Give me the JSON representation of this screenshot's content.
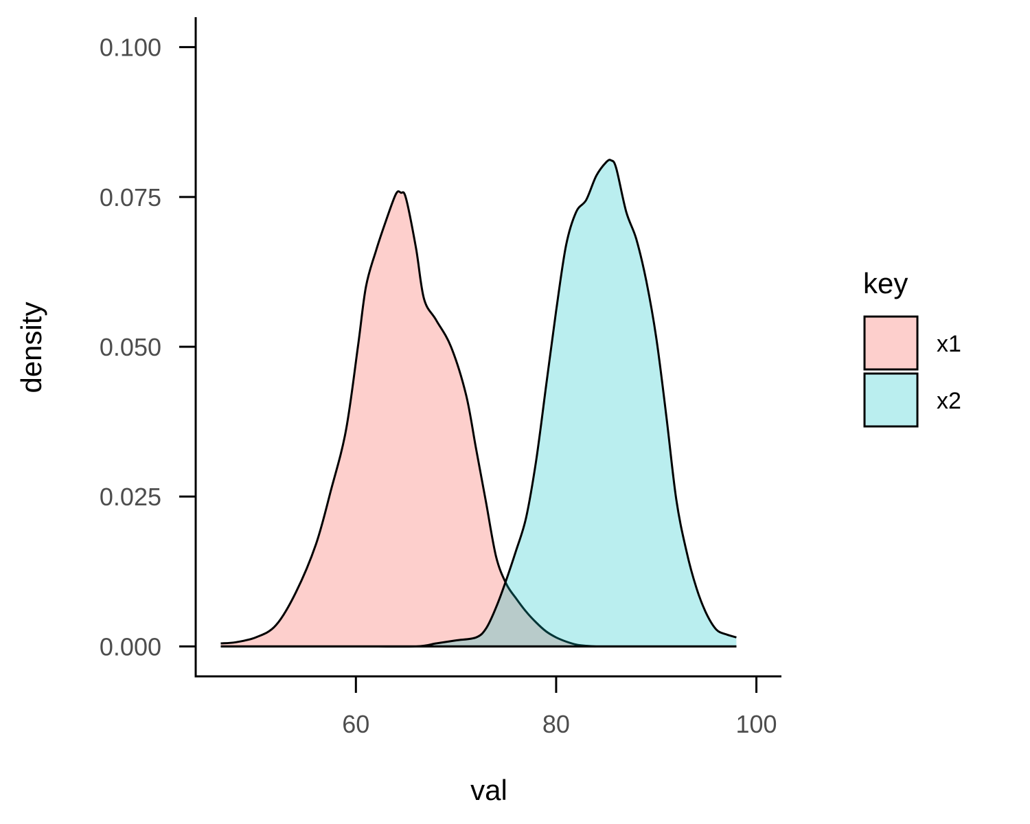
{
  "chart_data": {
    "type": "area",
    "subtype": "density",
    "title": "",
    "xlabel": "val",
    "ylabel": "density",
    "xlim": [
      44,
      102.5
    ],
    "ylim": [
      -0.005,
      0.105
    ],
    "x_ticks": [
      60,
      80,
      100
    ],
    "x_tick_labels": [
      "60",
      "80",
      "100"
    ],
    "y_ticks": [
      0.0,
      0.025,
      0.05,
      0.075,
      0.1
    ],
    "y_tick_labels": [
      "0.000",
      "0.025",
      "0.050",
      "0.075",
      "0.100"
    ],
    "grid": false,
    "legend": {
      "title": "key",
      "position": "right"
    },
    "series": [
      {
        "name": "x1",
        "color": "#F8766D",
        "fill_opacity": 0.35,
        "x": [
          46.5,
          48,
          50,
          52,
          54,
          56,
          57.5,
          59,
          60.2,
          61,
          62,
          63,
          64,
          64.5,
          65,
          66,
          66.8,
          68,
          69.5,
          71,
          72,
          73,
          74,
          75,
          76,
          77,
          78,
          79,
          80,
          81,
          82,
          83,
          84,
          85,
          98
        ],
        "y": [
          0.0005,
          0.0007,
          0.0015,
          0.0035,
          0.009,
          0.017,
          0.026,
          0.036,
          0.05,
          0.06,
          0.066,
          0.071,
          0.0755,
          0.0757,
          0.0748,
          0.0665,
          0.058,
          0.0545,
          0.05,
          0.042,
          0.033,
          0.024,
          0.015,
          0.0105,
          0.008,
          0.0058,
          0.004,
          0.0025,
          0.0015,
          0.0008,
          0.0003,
          0.0001,
          0.0,
          0.0,
          0.0
        ]
      },
      {
        "name": "x2",
        "color": "#00BFC4",
        "fill_opacity": 0.27,
        "x": [
          46.5,
          60,
          66,
          68,
          70,
          72,
          73,
          74,
          75,
          76,
          77,
          78,
          79,
          80,
          81,
          82,
          83,
          84,
          85,
          85.5,
          86,
          87,
          88,
          89,
          90,
          91,
          92,
          93,
          94,
          95,
          96,
          97,
          98
        ],
        "y": [
          0.0,
          0.0,
          0.0,
          0.0005,
          0.001,
          0.0015,
          0.003,
          0.0065,
          0.011,
          0.016,
          0.0215,
          0.031,
          0.0435,
          0.056,
          0.067,
          0.0725,
          0.0745,
          0.0785,
          0.0808,
          0.0811,
          0.0798,
          0.0725,
          0.068,
          0.061,
          0.0515,
          0.0385,
          0.0245,
          0.016,
          0.0098,
          0.0055,
          0.0028,
          0.002,
          0.0015
        ]
      }
    ]
  }
}
